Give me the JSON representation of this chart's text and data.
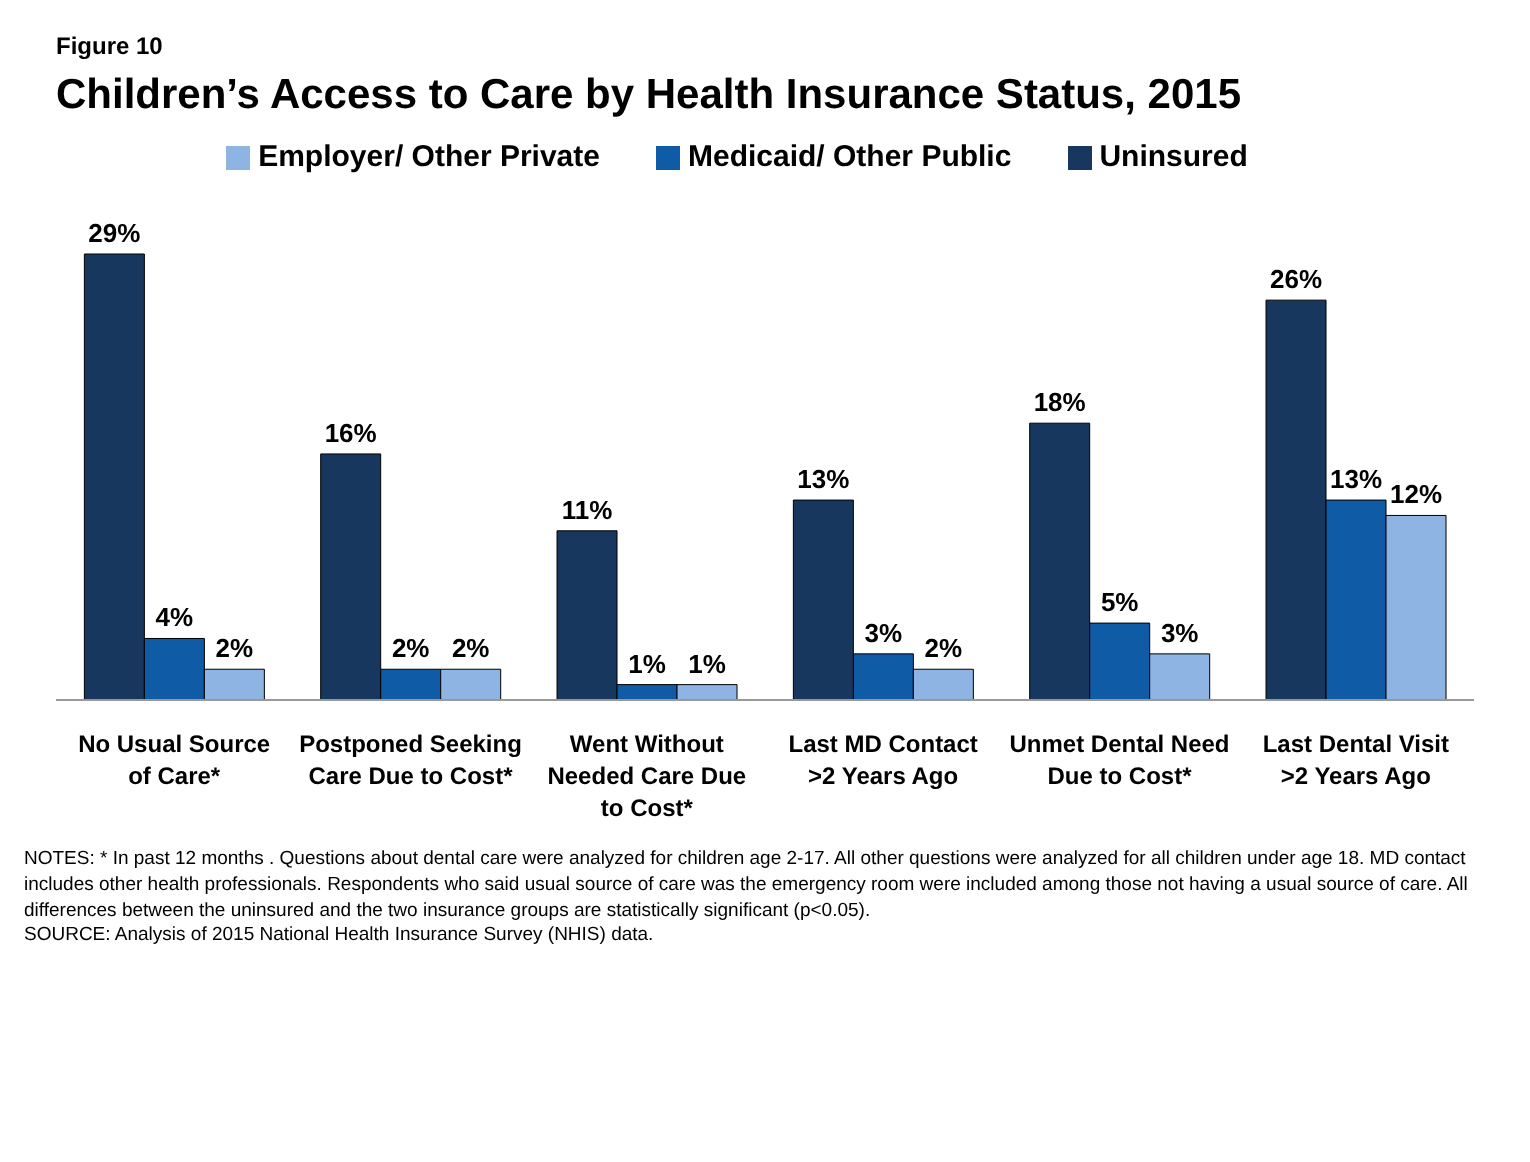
{
  "chart_data": {
    "type": "bar",
    "subtitle": "Figure 10",
    "title": "Children’s Access to Care by Health Insurance Status, 2015",
    "categories": [
      "No Usual Source of Care*",
      "Postponed Seeking Care Due to Cost*",
      "Went Without Needed Care Due to Cost*",
      "Last MD Contact >2 Years Ago",
      "Unmet Dental Need Due to Cost*",
      "Last Dental Visit >2 Years Ago"
    ],
    "series": [
      {
        "name": "Uninsured",
        "color": "#17375e",
        "values": [
          29,
          16,
          11,
          13,
          18,
          26
        ],
        "value_labels": [
          "29%",
          "16%",
          "11%",
          "13%",
          "18%",
          "26%"
        ]
      },
      {
        "name": "Medicaid/ Other Public",
        "color": "#0f5ba5",
        "values": [
          4,
          2,
          1,
          3,
          5,
          13
        ],
        "value_labels": [
          "4%",
          "2%",
          "1%",
          "3%",
          "5%",
          "13%"
        ]
      },
      {
        "name": "Employer/ Other Private",
        "color": "#8db4e2",
        "values": [
          2,
          2,
          1,
          2,
          3,
          12
        ],
        "value_labels": [
          "2%",
          "2%",
          "1%",
          "2%",
          "3%",
          "12%"
        ]
      }
    ],
    "legend": "top",
    "annotations": [
      "NOTES: * In past 12 months . Questions about dental care were analyzed for children age 2-17. All other questions were analyzed for all children under age 18. MD contact includes other health professionals. Respondents who said usual source of care was the emergency room were included among those not having a usual source of care.  All differences between the uninsured and the two insurance groups are statistically significant (p<0.05).",
      "SOURCE: Analysis of 2015 National Health Insurance Survey (NHIS) data."
    ]
  }
}
